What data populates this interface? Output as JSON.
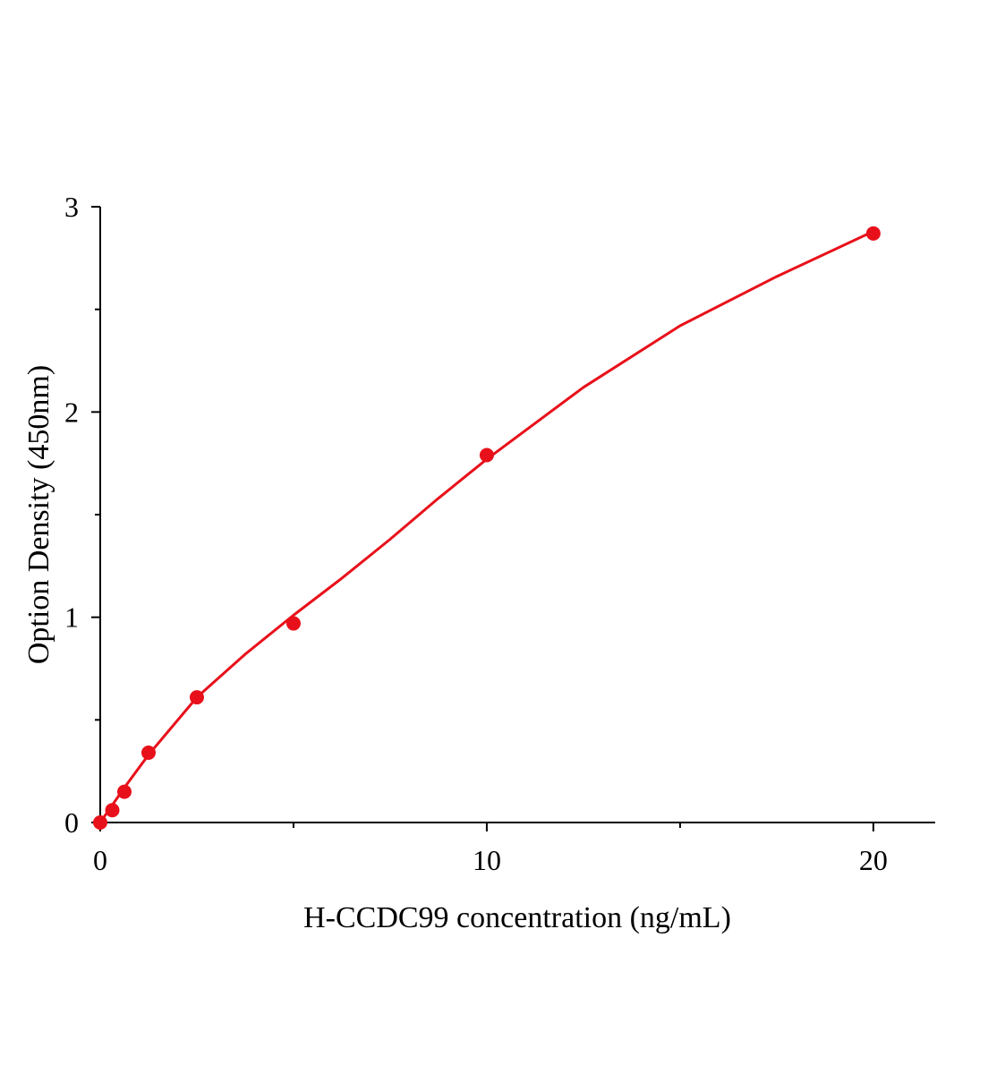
{
  "chart_data": {
    "type": "scatter",
    "xlabel": "H-CCDC99 concentration (ng/mL)",
    "ylabel": "Option Density (450nm)",
    "xlim": [
      0,
      21.6
    ],
    "ylim": [
      0,
      3
    ],
    "xticks": [
      0,
      10,
      20
    ],
    "yticks": [
      0,
      1,
      2,
      3
    ],
    "xminorticks": [
      5,
      15
    ],
    "yminorticks": [
      0.5,
      1.5,
      2.5
    ],
    "series": [
      {
        "mode": "markers",
        "color": "#e8101a",
        "x": [
          0,
          0.3125,
          0.625,
          1.25,
          2.5,
          5,
          10,
          20
        ],
        "values": [
          0,
          0.06,
          0.15,
          0.34,
          0.61,
          0.97,
          1.79,
          2.87
        ]
      },
      {
        "mode": "line",
        "color": "#e8101a",
        "x": [
          0,
          0.625,
          1.25,
          2.5,
          3.75,
          5,
          6.25,
          7.5,
          8.75,
          10,
          12.5,
          15,
          17.5,
          20
        ],
        "values": [
          0,
          0.17,
          0.33,
          0.61,
          0.82,
          1.01,
          1.19,
          1.38,
          1.58,
          1.77,
          2.12,
          2.42,
          2.66,
          2.88
        ]
      }
    ]
  }
}
